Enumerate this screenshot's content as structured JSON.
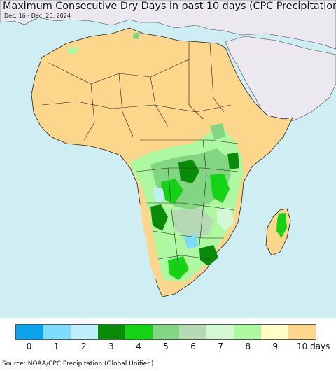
{
  "title": "Maximum Consecutive Dry Days in past 10 days (CPC Precipitation)",
  "date_range": "Dec. 16 - Dec. 25, 2024",
  "source": "Source: NOAA/CPC Precipitation (Global Unified)",
  "colors": {
    "ocean": "#cfeef4",
    "dry_land": "#fcd68a",
    "non_africa_land": "#ece8f0",
    "borders": "#222222"
  },
  "legend": {
    "items": [
      {
        "label": "0",
        "color": "#0aa2ea"
      },
      {
        "label": "1",
        "color": "#7edcfa"
      },
      {
        "label": "2",
        "color": "#c1eefc"
      },
      {
        "label": "3",
        "color": "#0a8c0a"
      },
      {
        "label": "4",
        "color": "#14d214"
      },
      {
        "label": "5",
        "color": "#82d682"
      },
      {
        "label": "6",
        "color": "#b6d8b2"
      },
      {
        "label": "7",
        "color": "#d4f8d4"
      },
      {
        "label": "8",
        "color": "#aef8a2"
      },
      {
        "label": "9",
        "color": "#fefec6"
      },
      {
        "label": "10 days",
        "color": "#fcd68a"
      }
    ]
  }
}
